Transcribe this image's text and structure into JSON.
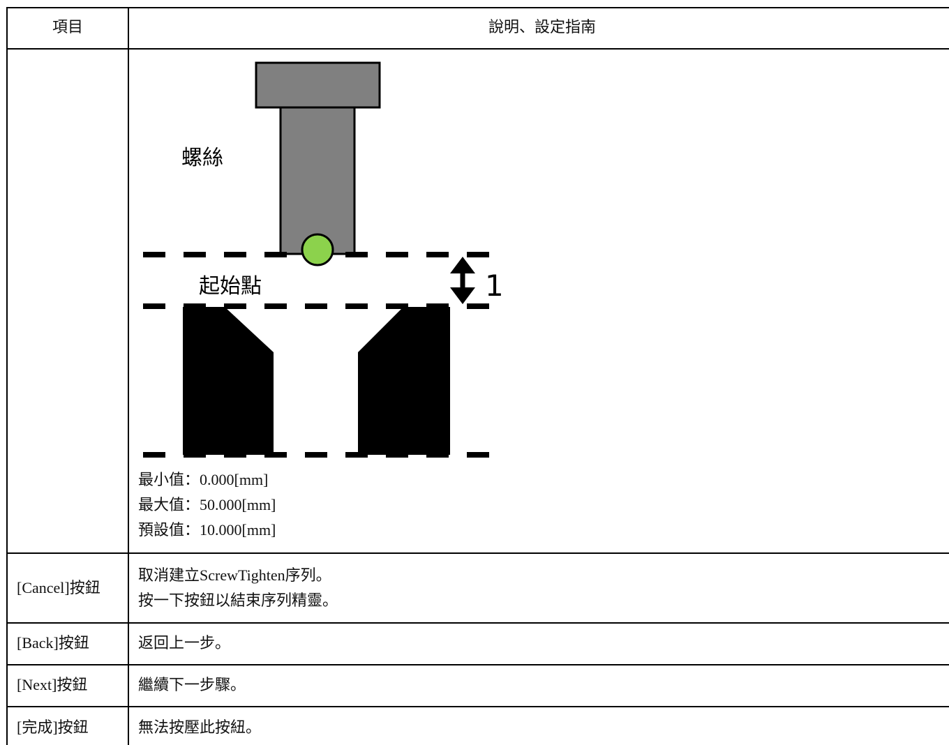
{
  "header": {
    "item": "項目",
    "description": "說明、設定指南"
  },
  "diagram": {
    "screw_label": "螺絲",
    "start_label": "起始點",
    "distance_label": "1",
    "range": [
      "最小值：0.000[mm]",
      "最大值：50.000[mm]",
      "預設值：10.000[mm]"
    ]
  },
  "rows": [
    {
      "item": "[Cancel]按鈕",
      "lines": [
        "取消建立ScrewTighten序列。",
        "按一下按鈕以結束序列精靈。"
      ]
    },
    {
      "item": "[Back]按鈕",
      "lines": [
        "返回上一步。"
      ]
    },
    {
      "item": "[Next]按鈕",
      "lines": [
        "繼續下一步驟。"
      ]
    },
    {
      "item": "[完成]按鈕",
      "lines": [
        "無法按壓此按紐。"
      ]
    }
  ]
}
